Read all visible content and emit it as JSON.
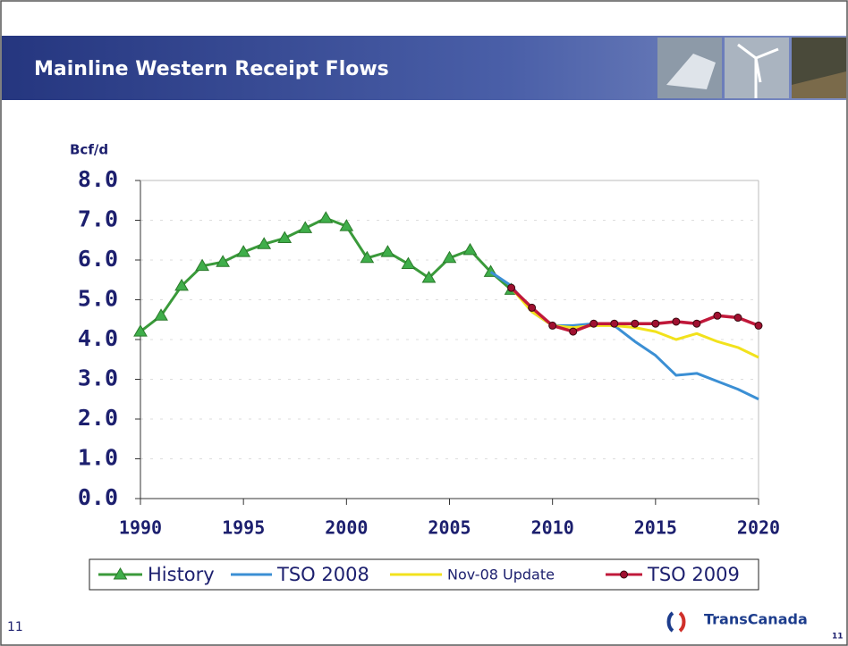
{
  "chart_data": {
    "type": "line",
    "title": "Mainline Western Receipt Flows",
    "y_label": "Bcf/d",
    "x": [
      1990,
      1991,
      1992,
      1993,
      1994,
      1995,
      1996,
      1997,
      1998,
      1999,
      2000,
      2001,
      2002,
      2003,
      2004,
      2005,
      2006,
      2007,
      2008,
      2009,
      2010,
      2011,
      2012,
      2013,
      2014,
      2015,
      2016,
      2017,
      2018,
      2019,
      2020
    ],
    "series": [
      {
        "name": "History",
        "color": "#3a9a3a",
        "marker": "triangle",
        "values": [
          4.2,
          4.6,
          5.35,
          5.85,
          5.95,
          6.2,
          6.4,
          6.55,
          6.8,
          7.05,
          6.85,
          6.05,
          6.2,
          5.9,
          5.55,
          6.05,
          6.25,
          5.7,
          5.25,
          null,
          null,
          null,
          null,
          null,
          null,
          null,
          null,
          null,
          null,
          null,
          null
        ]
      },
      {
        "name": "TSO 2008",
        "color": "#3b8fd4",
        "marker": "none",
        "values": [
          null,
          null,
          null,
          null,
          null,
          null,
          null,
          null,
          null,
          null,
          null,
          null,
          null,
          null,
          null,
          null,
          null,
          5.7,
          5.35,
          4.7,
          4.35,
          4.35,
          4.4,
          4.35,
          3.95,
          3.6,
          3.1,
          3.15,
          2.95,
          2.75,
          2.5
        ]
      },
      {
        "name": "Nov-08 Update",
        "color": "#f2e21c",
        "marker": "none",
        "values": [
          null,
          null,
          null,
          null,
          null,
          null,
          null,
          null,
          null,
          null,
          null,
          null,
          null,
          null,
          null,
          null,
          null,
          null,
          5.3,
          4.7,
          4.35,
          4.3,
          4.35,
          4.35,
          4.3,
          4.2,
          4.0,
          4.15,
          3.95,
          3.8,
          3.55
        ]
      },
      {
        "name": "TSO 2009",
        "color": "#c0183a",
        "marker": "circle",
        "values": [
          null,
          null,
          null,
          null,
          null,
          null,
          null,
          null,
          null,
          null,
          null,
          null,
          null,
          null,
          null,
          null,
          null,
          null,
          5.3,
          4.8,
          4.35,
          4.2,
          4.4,
          4.4,
          4.4,
          4.4,
          4.45,
          4.4,
          4.6,
          4.55,
          4.35
        ]
      }
    ],
    "xlim": [
      1990,
      2020
    ],
    "xticks": [
      1990,
      1995,
      2000,
      2005,
      2010,
      2015,
      2020
    ],
    "ylim": [
      0,
      8
    ],
    "yticks": [
      {
        "value": 0,
        "label": "0.0"
      },
      {
        "value": 1,
        "label": "1.0"
      },
      {
        "value": 2,
        "label": "2.0"
      },
      {
        "value": 3,
        "label": "3.0"
      },
      {
        "value": 4,
        "label": "4.0"
      },
      {
        "value": 5,
        "label": "5.0"
      },
      {
        "value": 6,
        "label": "6.0"
      },
      {
        "value": 7,
        "label": "7.0"
      },
      {
        "value": 8,
        "label": "8.0"
      }
    ],
    "grid": true
  },
  "footer": {
    "page_left": "11",
    "logo": "TransCanada",
    "page_right": "11"
  }
}
